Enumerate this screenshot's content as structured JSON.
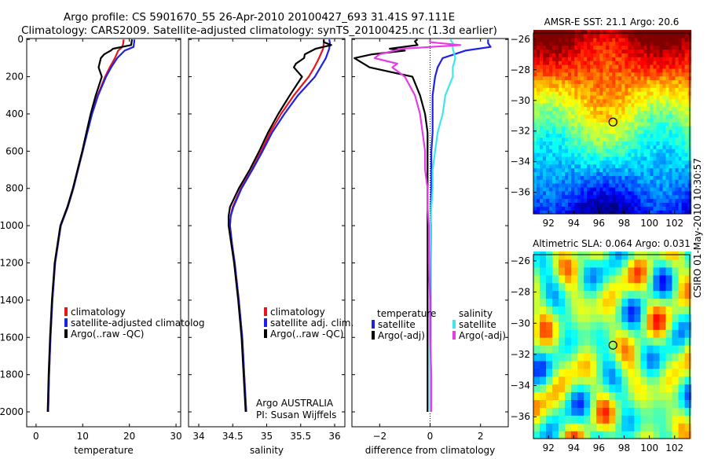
{
  "title": {
    "line1": "Argo profile: CS 5901670_55 26-Apr-2010 20100427_693 31.41S 97.111E",
    "line2": "Climatology: CARS2009. Satellite-adjusted climatology: synTS_20100425.nc (1.3d earlier)"
  },
  "side_label": "CSIRO 01-May-2010 10:30:57",
  "colors": {
    "climatology": "#e8141b",
    "satellite": "#1f21e8",
    "argo": "#000000",
    "salinity_satellite": "#3fe6ee",
    "salinity_argo": "#e63be6"
  },
  "chart_data": [
    {
      "type": "line",
      "id": "temperature",
      "xlabel": "temperature",
      "xlim": [
        -2,
        31
      ],
      "ylim": [
        2080,
        -5
      ],
      "xticks": [
        0,
        10,
        20,
        30
      ],
      "yticks": [
        0,
        200,
        400,
        600,
        800,
        1000,
        1200,
        1400,
        1600,
        1800,
        2000
      ],
      "legend": {
        "placement": "lower-right",
        "entries": [
          {
            "label": "climatology",
            "color": "#e8141b"
          },
          {
            "label": "satellite-adjusted climatolog",
            "color": "#1f21e8"
          },
          {
            "label": "Argo(..raw -QC)",
            "color": "#000000"
          }
        ]
      },
      "series": [
        {
          "name": "climatology",
          "color": "#e8141b",
          "depth": [
            0,
            20,
            40,
            60,
            100,
            150,
            200,
            300,
            400,
            500,
            600,
            700,
            800,
            900,
            1000,
            1200,
            1400,
            1600,
            1800,
            2000
          ],
          "values": [
            18.8,
            18.7,
            18.5,
            17.6,
            16.9,
            15.8,
            14.8,
            13.2,
            11.9,
            10.9,
            10.0,
            9.0,
            8.0,
            6.8,
            5.3,
            4.1,
            3.5,
            3.1,
            2.8,
            2.6
          ]
        },
        {
          "name": "satellite-adjusted climatology",
          "color": "#1f21e8",
          "depth": [
            0,
            20,
            40,
            60,
            100,
            150,
            200,
            300,
            400,
            500,
            600,
            700,
            800,
            900,
            1000,
            1200,
            1400,
            1600,
            1800,
            2000
          ],
          "values": [
            21.1,
            21.0,
            20.9,
            19.0,
            17.4,
            16.1,
            15.0,
            13.3,
            12.0,
            11.0,
            10.0,
            9.0,
            8.0,
            6.8,
            5.3,
            4.1,
            3.5,
            3.1,
            2.8,
            2.6
          ]
        },
        {
          "name": "Argo(..raw -QC)",
          "color": "#000000",
          "depth": [
            0,
            10,
            30,
            50,
            60,
            80,
            100,
            150,
            200,
            300,
            400,
            500,
            600,
            700,
            800,
            900,
            1000,
            1200,
            1400,
            1600,
            1800,
            2000
          ],
          "values": [
            20.6,
            20.5,
            20.4,
            16.5,
            16.0,
            14.6,
            13.9,
            13.4,
            14.1,
            12.8,
            11.7,
            10.8,
            9.9,
            8.9,
            7.9,
            6.7,
            5.2,
            4.0,
            3.4,
            3.0,
            2.7,
            2.5
          ]
        }
      ]
    },
    {
      "type": "line",
      "id": "salinity",
      "xlabel": "salinity",
      "xlim": [
        33.85,
        36.15
      ],
      "ylim": [
        2080,
        -5
      ],
      "xticks": [
        34,
        34.5,
        35,
        35.5,
        36
      ],
      "xticklabels": [
        "34",
        "34.5",
        "35",
        "35.5",
        "36"
      ],
      "legend": {
        "placement": "lower-right",
        "entries": [
          {
            "label": "climatology",
            "color": "#e8141b"
          },
          {
            "label": "satellite adj. clim.",
            "color": "#1f21e8"
          },
          {
            "label": "Argo(..raw -QC)",
            "color": "#000000"
          }
        ]
      },
      "annotation": {
        "line1": "Argo AUSTRALIA",
        "line2": "PI: Susan Wijffels"
      },
      "series": [
        {
          "name": "climatology",
          "color": "#e8141b",
          "depth": [
            0,
            20,
            50,
            100,
            150,
            200,
            300,
            400,
            500,
            600,
            700,
            800,
            900,
            950,
            1000,
            1100,
            1200,
            1400,
            1600,
            1800,
            2000
          ],
          "values": [
            35.84,
            35.84,
            35.83,
            35.77,
            35.7,
            35.62,
            35.4,
            35.21,
            35.05,
            34.92,
            34.78,
            34.62,
            34.5,
            34.47,
            34.46,
            34.49,
            34.53,
            34.59,
            34.64,
            34.67,
            34.7
          ]
        },
        {
          "name": "satellite adj. clim.",
          "color": "#1f21e8",
          "depth": [
            0,
            20,
            50,
            100,
            150,
            200,
            300,
            400,
            500,
            600,
            700,
            800,
            900,
            950,
            1000,
            1100,
            1200,
            1400,
            1600,
            1800,
            2000
          ],
          "values": [
            35.92,
            35.93,
            35.92,
            35.87,
            35.79,
            35.71,
            35.46,
            35.26,
            35.08,
            34.94,
            34.79,
            34.63,
            34.51,
            34.47,
            34.46,
            34.49,
            34.53,
            34.59,
            34.64,
            34.67,
            34.7
          ]
        },
        {
          "name": "Argo(..raw -QC)",
          "color": "#000000",
          "depth": [
            0,
            15,
            30,
            50,
            80,
            100,
            130,
            150,
            200,
            300,
            400,
            500,
            600,
            700,
            800,
            900,
            950,
            1000,
            1100,
            1200,
            1400,
            1600,
            1800,
            2000
          ],
          "values": [
            35.84,
            35.84,
            35.95,
            35.72,
            35.56,
            35.55,
            35.43,
            35.4,
            35.52,
            35.34,
            35.17,
            35.02,
            34.89,
            34.75,
            34.59,
            34.46,
            34.44,
            34.44,
            34.48,
            34.52,
            34.58,
            34.63,
            34.66,
            34.69
          ]
        }
      ]
    },
    {
      "type": "line",
      "id": "difference",
      "xlabel": "difference from climatology",
      "xlim": [
        -3.1,
        3.1
      ],
      "ylim": [
        2080,
        -5
      ],
      "xticks": [
        -2,
        0,
        2
      ],
      "legend": {
        "placement": "lower",
        "group_titles": [
          "temperature",
          "salinity"
        ],
        "entries": [
          {
            "label": "satellite",
            "color": "#1f21e8"
          },
          {
            "label": "Argo(-adj)",
            "color": "#000000"
          },
          {
            "label": "satellite",
            "color": "#3fe6ee"
          },
          {
            "label": "Argo(-adj)",
            "color": "#e63be6"
          }
        ]
      },
      "series": [
        {
          "name": "temperature satellite",
          "color": "#1f21e8",
          "depth": [
            0,
            20,
            40,
            60,
            100,
            150,
            200,
            300,
            400,
            500,
            600,
            700,
            800,
            900,
            1000,
            1200,
            1400,
            1600,
            1800,
            2000
          ],
          "values": [
            2.3,
            2.3,
            2.4,
            1.4,
            0.5,
            0.3,
            0.2,
            0.1,
            0.1,
            0.1,
            0.05,
            0.05,
            0.05,
            0.03,
            0.03,
            0.02,
            0.02,
            0.02,
            0.02,
            0.02
          ]
        },
        {
          "name": "temperature Argo(-adj)",
          "color": "#000000",
          "depth": [
            0,
            10,
            30,
            50,
            60,
            80,
            100,
            150,
            200,
            300,
            400,
            500,
            600,
            700,
            800,
            900,
            1000,
            1200,
            1400,
            1600,
            1800,
            2000
          ],
          "values": [
            -0.5,
            -0.6,
            -0.5,
            -1.6,
            -1.0,
            -2.3,
            -3.0,
            -2.4,
            -0.7,
            -0.4,
            -0.2,
            -0.1,
            -0.1,
            -0.1,
            -0.1,
            -0.1,
            -0.1,
            -0.1,
            -0.1,
            -0.1,
            -0.1,
            -0.1
          ]
        },
        {
          "name": "salinity satellite",
          "color": "#3fe6ee",
          "depth": [
            0,
            20,
            50,
            100,
            150,
            200,
            300,
            400,
            500,
            600,
            700,
            800,
            900,
            1000,
            1200,
            1400,
            1600,
            1800,
            2000
          ],
          "values": [
            0.8,
            0.9,
            0.9,
            1.0,
            0.9,
            0.9,
            0.6,
            0.5,
            0.3,
            0.2,
            0.1,
            0.1,
            0.05,
            0.02,
            0.0,
            0.0,
            0.0,
            0.0,
            0.0
          ]
        },
        {
          "name": "salinity Argo(-adj)",
          "color": "#e63be6",
          "depth": [
            0,
            15,
            30,
            50,
            80,
            100,
            130,
            150,
            200,
            300,
            400,
            500,
            600,
            700,
            800,
            900,
            1000,
            1200,
            1400,
            1600,
            1800,
            2000
          ],
          "values": [
            0.0,
            0.0,
            1.2,
            -1.1,
            -2.0,
            -2.2,
            -1.3,
            -1.5,
            -1.0,
            -0.6,
            -0.4,
            -0.3,
            -0.2,
            -0.2,
            -0.1,
            -0.1,
            -0.05,
            -0.05,
            0.0,
            0.0,
            0.05,
            0.05
          ]
        }
      ]
    },
    {
      "type": "heatmap",
      "id": "sst_map",
      "title": "AMSR-E SST: 21.1  Argo: 20.6",
      "xlim": [
        90.8,
        103.2
      ],
      "ylim": [
        -37.4,
        -25.6
      ],
      "xticks": [
        92,
        94,
        96,
        98,
        100,
        102
      ],
      "yticks": [
        -26,
        -28,
        -30,
        -32,
        -34,
        -36
      ],
      "marker": {
        "lon": 97.111,
        "lat": -31.41
      },
      "value_range": [
        17,
        25
      ],
      "colormap": "jet",
      "grid_resolution_deg": 0.25
    },
    {
      "type": "heatmap",
      "id": "sla_map",
      "title": "Altimetric SLA: 0.064  Argo: 0.031",
      "xlim": [
        90.8,
        103.2
      ],
      "ylim": [
        -37.4,
        -25.6
      ],
      "xticks": [
        92,
        94,
        96,
        98,
        100,
        102
      ],
      "yticks": [
        -26,
        -28,
        -30,
        -32,
        -34,
        -36
      ],
      "marker": {
        "lon": 97.111,
        "lat": -31.41
      },
      "value_range": [
        -0.3,
        0.3
      ],
      "colormap": "jet",
      "grid_resolution_deg": 0.5
    }
  ]
}
